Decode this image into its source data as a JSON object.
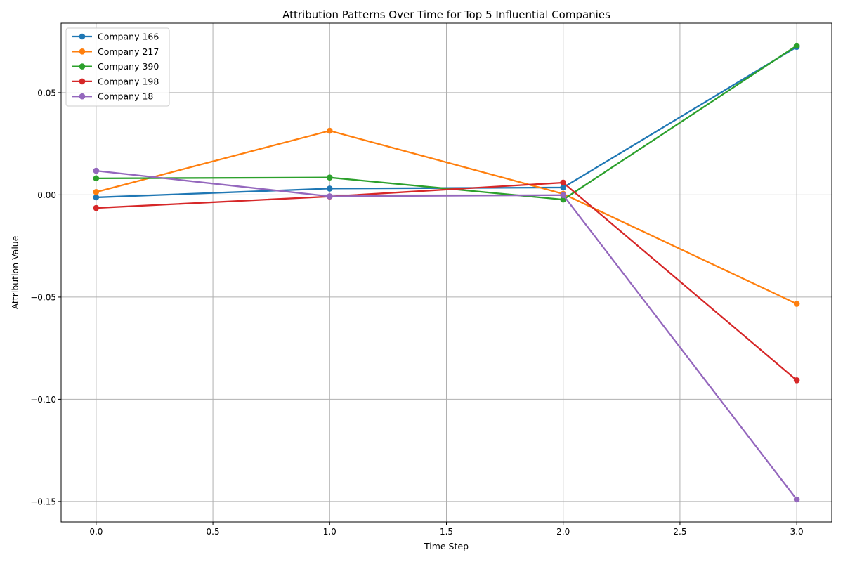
{
  "chart_data": {
    "type": "line",
    "title": "Attribution Patterns Over Time for Top 5 Influential Companies",
    "xlabel": "Time Step",
    "ylabel": "Attribution Value",
    "x": [
      0,
      1,
      2,
      3
    ],
    "xlim": [
      -0.15,
      3.15
    ],
    "ylim": [
      -0.16,
      0.084
    ],
    "xticks": [
      0.0,
      0.5,
      1.0,
      1.5,
      2.0,
      2.5,
      3.0
    ],
    "xtick_labels": [
      "0.0",
      "0.5",
      "1.0",
      "1.5",
      "2.0",
      "2.5",
      "3.0"
    ],
    "yticks": [
      0.05,
      0.0,
      -0.05,
      -0.1,
      -0.15
    ],
    "ytick_labels": [
      "0.05",
      "0.00",
      "−0.05",
      "−0.10",
      "−0.15"
    ],
    "grid": true,
    "legend_position": "top-left",
    "series": [
      {
        "name": "Company 166",
        "color": "#1f77b4",
        "values": [
          -0.0012,
          0.0031,
          0.0036,
          0.0724
        ]
      },
      {
        "name": "Company 217",
        "color": "#ff7f0e",
        "values": [
          0.0014,
          0.0314,
          0.0005,
          -0.0533
        ]
      },
      {
        "name": "Company 390",
        "color": "#2ca02c",
        "values": [
          0.0081,
          0.0085,
          -0.0023,
          0.073
        ]
      },
      {
        "name": "Company 198",
        "color": "#d62728",
        "values": [
          -0.0064,
          -0.0008,
          0.006,
          -0.0907
        ]
      },
      {
        "name": "Company 18",
        "color": "#9467bd",
        "values": [
          0.0118,
          -0.0007,
          -0.0001,
          -0.149
        ]
      }
    ]
  }
}
